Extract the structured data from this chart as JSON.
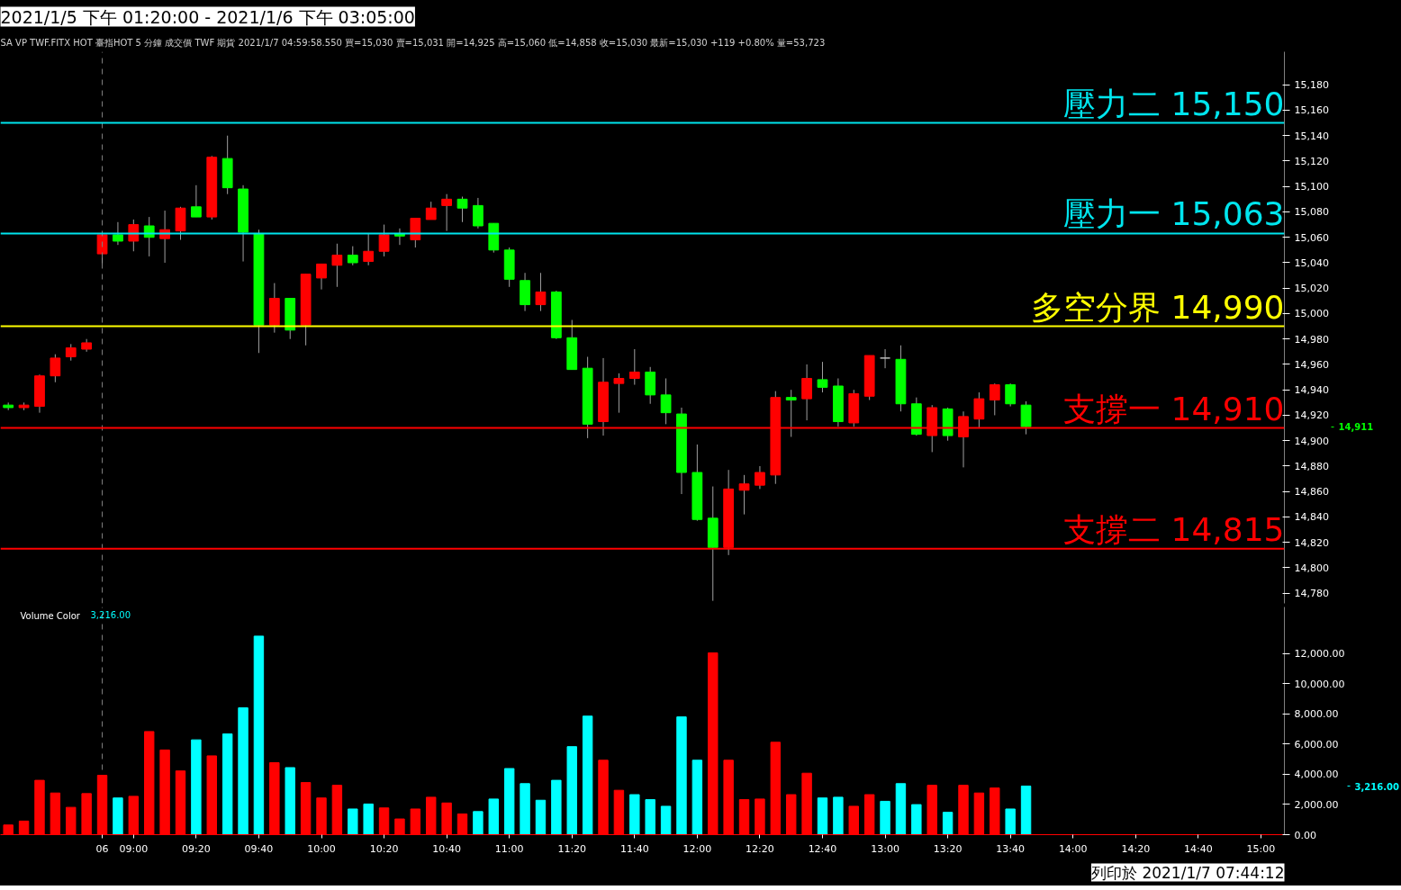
{
  "chart_data": [
    {
      "type": "candlestick",
      "title": "2021/1/5 下午 01:20:00 - 2021/1/6 下午 03:05:00",
      "subtitle": "SA VP TWF.FITX HOT 臺指HOT 5 分鐘 成交價 TWF 期貨 2021/1/7 04:59:58.550 買=15,030 賣=15,031 開=14,925 高=15,060 低=14,858 收=15,030 最新=15,030 +119 +0.80% 量=53,723",
      "categories": [
        null,
        null,
        null,
        null,
        null,
        null,
        null,
        null,
        null,
        null,
        null,
        null,
        null,
        null,
        null,
        null,
        null,
        null,
        null,
        null,
        null,
        null,
        null,
        null,
        null,
        null,
        null,
        null,
        null,
        null,
        null,
        null,
        null,
        null,
        null,
        null,
        null,
        null,
        null,
        null,
        null,
        null,
        null,
        null,
        null,
        null,
        null,
        null,
        null,
        null,
        null,
        null,
        null,
        null,
        null,
        null,
        null,
        null,
        null,
        null,
        null,
        null,
        null,
        null,
        null,
        null,
        null,
        null,
        null,
        null,
        null,
        null,
        null,
        null,
        null,
        null,
        null,
        null,
        null,
        null,
        null,
        null
      ],
      "ohlc": [
        [
          14928,
          14930,
          14924,
          14926
        ],
        [
          14926,
          14930,
          14924,
          14928
        ],
        [
          14927,
          14952,
          14922,
          14951
        ],
        [
          14951,
          14968,
          14946,
          14965
        ],
        [
          14966,
          14976,
          14963,
          14973
        ],
        [
          14972,
          14980,
          14970,
          14977
        ],
        [
          15047,
          15063,
          15038,
          15062
        ],
        [
          15062,
          15072,
          15054,
          15057
        ],
        [
          15057,
          15074,
          15049,
          15070
        ],
        [
          15069,
          15076,
          15045,
          15060
        ],
        [
          15059,
          15081,
          15040,
          15066
        ],
        [
          15065,
          15084,
          15058,
          15083
        ],
        [
          15084,
          15101,
          15076,
          15076
        ],
        [
          15076,
          15124,
          15074,
          15123
        ],
        [
          15122,
          15140,
          15094,
          15099
        ],
        [
          15098,
          15101,
          15041,
          15064
        ],
        [
          15063,
          15066,
          14969,
          14991
        ],
        [
          14991,
          15024,
          14985,
          15012
        ],
        [
          15012,
          15012,
          14980,
          14987
        ],
        [
          14991,
          15031,
          14975,
          15031
        ],
        [
          15028,
          15039,
          15019,
          15039
        ],
        [
          15038,
          15055,
          15021,
          15046
        ],
        [
          15046,
          15053,
          15038,
          15040
        ],
        [
          15041,
          15063,
          15038,
          15049
        ],
        [
          15049,
          15070,
          15045,
          15062
        ],
        [
          15063,
          15067,
          15054,
          15061
        ],
        [
          15058,
          15075,
          15052,
          15075
        ],
        [
          15074,
          15088,
          15074,
          15083
        ],
        [
          15085,
          15094,
          15065,
          15090
        ],
        [
          15090,
          15092,
          15072,
          15083
        ],
        [
          15085,
          15091,
          15067,
          15069
        ],
        [
          15071,
          15071,
          15048,
          15050
        ],
        [
          15050,
          15052,
          15021,
          15027
        ],
        [
          15026,
          15032,
          15002,
          15007
        ],
        [
          15007,
          15032,
          15002,
          15017
        ],
        [
          15017,
          15018,
          14980,
          14981
        ],
        [
          14981,
          14995,
          14956,
          14956
        ],
        [
          14957,
          14966,
          14902,
          14913
        ],
        [
          14915,
          14965,
          14904,
          14946
        ],
        [
          14945,
          14953,
          14922,
          14949
        ],
        [
          14949,
          14972,
          14944,
          14954
        ],
        [
          14954,
          14958,
          14929,
          14936
        ],
        [
          14936,
          14949,
          14913,
          14922
        ],
        [
          14921,
          14926,
          14858,
          14875
        ],
        [
          14875,
          14897,
          14837,
          14838
        ],
        [
          14839,
          14864,
          14774,
          14816
        ],
        [
          14816,
          14877,
          14810,
          14862
        ],
        [
          14861,
          14873,
          14842,
          14866
        ],
        [
          14865,
          14880,
          14862,
          14875
        ],
        [
          14873,
          14939,
          14866,
          14934
        ],
        [
          14934,
          14940,
          14903,
          14932
        ],
        [
          14933,
          14960,
          14916,
          14949
        ],
        [
          14948,
          14962,
          14938,
          14942
        ],
        [
          14943,
          14949,
          14911,
          14915
        ],
        [
          14914,
          14940,
          14911,
          14937
        ],
        [
          14935,
          14967,
          14932,
          14967
        ],
        [
          14965,
          14972,
          14957,
          14965
        ],
        [
          14964,
          14975,
          14923,
          14929
        ],
        [
          14929,
          14934,
          14904,
          14905
        ],
        [
          14904,
          14928,
          14891,
          14926
        ],
        [
          14925,
          14926,
          14900,
          14904
        ],
        [
          14903,
          14923,
          14879,
          14919
        ],
        [
          14917,
          14938,
          14910,
          14933
        ],
        [
          14932,
          14945,
          14920,
          14944
        ],
        [
          14944,
          14945,
          14927,
          14929
        ],
        [
          14928,
          14931,
          14905,
          14911
        ],
        null,
        null,
        null,
        null,
        null,
        null,
        null,
        null,
        null,
        null,
        null,
        null,
        null,
        null,
        null,
        null
      ],
      "colors": [
        "#00ff00",
        "#ff0000",
        "#ff0000",
        "#ff0000",
        "#ff0000",
        "#ff0000",
        "#ff0000",
        "#00ff00",
        "#ff0000",
        "#00ff00",
        "#ff0000",
        "#ff0000",
        "#00ff00",
        "#ff0000",
        "#00ff00",
        "#00ff00",
        "#00ff00",
        "#ff0000",
        "#00ff00",
        "#ff0000",
        "#ff0000",
        "#ff0000",
        "#00ff00",
        "#ff0000",
        "#ff0000",
        "#00ff00",
        "#ff0000",
        "#ff0000",
        "#ff0000",
        "#00ff00",
        "#00ff00",
        "#00ff00",
        "#00ff00",
        "#00ff00",
        "#ff0000",
        "#00ff00",
        "#00ff00",
        "#00ff00",
        "#ff0000",
        "#ff0000",
        "#ff0000",
        "#00ff00",
        "#00ff00",
        "#00ff00",
        "#00ff00",
        "#00ff00",
        "#ff0000",
        "#ff0000",
        "#ff0000",
        "#ff0000",
        "#00ff00",
        "#ff0000",
        "#00ff00",
        "#00ff00",
        "#ff0000",
        "#ff0000",
        "#c0c0c0",
        "#00ff00",
        "#00ff00",
        "#ff0000",
        "#00ff00",
        "#ff0000",
        "#ff0000",
        "#ff0000",
        "#00ff00",
        "#00ff00",
        null,
        null,
        null,
        null,
        null,
        null,
        null,
        null,
        null,
        null,
        null,
        null,
        null,
        null,
        null,
        null
      ],
      "ylim": [
        14772,
        15206
      ],
      "yticks": [
        {
          "value": 14780,
          "label": "14,780"
        },
        {
          "value": 14800,
          "label": "14,800"
        },
        {
          "value": 14820,
          "label": "14,820"
        },
        {
          "value": 14840,
          "label": "14,840"
        },
        {
          "value": 14860,
          "label": "14,860"
        },
        {
          "value": 14880,
          "label": "14,880"
        },
        {
          "value": 14900,
          "label": "14,900"
        },
        {
          "value": 14920,
          "label": "14,920"
        },
        {
          "value": 14940,
          "label": "14,940"
        },
        {
          "value": 14960,
          "label": "14,960"
        },
        {
          "value": 14980,
          "label": "14,980"
        },
        {
          "value": 15000,
          "label": "15,000"
        },
        {
          "value": 15020,
          "label": "15,020"
        },
        {
          "value": 15040,
          "label": "15,040"
        },
        {
          "value": 15060,
          "label": "15,060"
        },
        {
          "value": 15080,
          "label": "15,080"
        },
        {
          "value": 15100,
          "label": "15,100"
        },
        {
          "value": 15120,
          "label": "15,120"
        },
        {
          "value": 15140,
          "label": "15,140"
        },
        {
          "value": 15160,
          "label": "15,160"
        },
        {
          "value": 15180,
          "label": "15,180"
        }
      ],
      "tick_labels": "y",
      "ref_lines": [
        {
          "axis": "y",
          "value": 15150,
          "label": "壓力二 15,150",
          "color": "#00e5ee"
        },
        {
          "axis": "y",
          "value": 15063,
          "label": "壓力一 15,063",
          "color": "#00e5ee"
        },
        {
          "axis": "y",
          "value": 14990,
          "label": "多空分界 14,990",
          "color": "#ffff00"
        },
        {
          "axis": "y",
          "value": 14910,
          "label": "支撐一 14,910",
          "color": "#ff0000"
        },
        {
          "axis": "y",
          "value": 14815,
          "label": "支撐二 14,815",
          "color": "#ff0000"
        }
      ],
      "annotations": [
        "14,911"
      ]
    },
    {
      "type": "bar",
      "title": "Volume Color",
      "categories": [
        null,
        null,
        null,
        null,
        null,
        null,
        "06",
        null,
        "09:00",
        null,
        null,
        null,
        "09:20",
        null,
        null,
        null,
        "09:40",
        null,
        null,
        null,
        "10:00",
        null,
        null,
        null,
        "10:20",
        null,
        null,
        null,
        "10:40",
        null,
        null,
        null,
        "11:00",
        null,
        null,
        null,
        "11:20",
        null,
        null,
        null,
        "11:40",
        null,
        null,
        null,
        "12:00",
        null,
        null,
        null,
        "12:20",
        null,
        null,
        null,
        "12:40",
        null,
        null,
        null,
        "13:00",
        null,
        null,
        null,
        "13:20",
        null,
        null,
        null,
        "13:40",
        null,
        null,
        null,
        "14:00",
        null,
        null,
        null,
        "14:20",
        null,
        null,
        null,
        "14:40",
        null,
        null,
        null,
        "15:00",
        null
      ],
      "values": [
        640,
        900,
        3600,
        2760,
        1810,
        2720,
        3930,
        2430,
        2540,
        6830,
        5610,
        4220,
        6280,
        5220,
        6670,
        8400,
        13150,
        4770,
        4440,
        3450,
        2430,
        3270,
        1700,
        2030,
        1770,
        1040,
        1700,
        2480,
        2100,
        1370,
        1530,
        2360,
        4380,
        3380,
        2280,
        3600,
        5830,
        7850,
        4930,
        2940,
        2650,
        2320,
        1880,
        7800,
        4930,
        12040,
        4930,
        2320,
        2360,
        6120,
        2650,
        4070,
        2430,
        2480,
        1880,
        2650,
        2210,
        3380,
        1990,
        3270,
        1480,
        3270,
        2760,
        3090,
        1700,
        3216,
        null,
        null,
        null,
        null,
        null,
        null,
        null,
        null,
        null,
        null,
        null,
        null,
        null,
        null,
        null,
        null
      ],
      "colors": [
        "#ff0000",
        "#ff0000",
        "#ff0000",
        "#ff0000",
        "#ff0000",
        "#ff0000",
        "#ff0000",
        "#00ffff",
        "#ff0000",
        "#ff0000",
        "#ff0000",
        "#ff0000",
        "#00ffff",
        "#ff0000",
        "#00ffff",
        "#00ffff",
        "#00ffff",
        "#ff0000",
        "#00ffff",
        "#ff0000",
        "#ff0000",
        "#ff0000",
        "#00ffff",
        "#00ffff",
        "#ff0000",
        "#ff0000",
        "#ff0000",
        "#ff0000",
        "#ff0000",
        "#ff0000",
        "#00ffff",
        "#00ffff",
        "#00ffff",
        "#00ffff",
        "#00ffff",
        "#00ffff",
        "#00ffff",
        "#00ffff",
        "#ff0000",
        "#ff0000",
        "#00ffff",
        "#00ffff",
        "#00ffff",
        "#00ffff",
        "#00ffff",
        "#ff0000",
        "#ff0000",
        "#ff0000",
        "#ff0000",
        "#ff0000",
        "#ff0000",
        "#ff0000",
        "#00ffff",
        "#00ffff",
        "#ff0000",
        "#ff0000",
        "#00ffff",
        "#00ffff",
        "#00ffff",
        "#ff0000",
        "#00ffff",
        "#ff0000",
        "#ff0000",
        "#ff0000",
        "#00ffff",
        "#00ffff",
        null,
        null,
        null,
        null,
        null,
        null,
        null,
        null,
        null,
        null,
        null,
        null,
        null,
        null,
        null,
        null
      ],
      "ylim": [
        0,
        15080
      ],
      "ref_lines": [
        {
          "axis": "x",
          "value": "06",
          "color": "#808080",
          "line_style": "dashed"
        }
      ],
      "yticks": [
        {
          "value": 0,
          "label": "0.00"
        },
        {
          "value": 2000,
          "label": "2,000.00"
        },
        {
          "value": 4000,
          "label": "4,000.00"
        },
        {
          "value": 6000,
          "label": "6,000.00"
        },
        {
          "value": 8000,
          "label": "8,000.00"
        },
        {
          "value": 10000,
          "label": "10,000.00"
        },
        {
          "value": 12000,
          "label": "12,000.00"
        }
      ],
      "annotations": [
        "3,216.00",
        "3,216.00",
        "列印於 2021/1/7 07:44:12"
      ]
    }
  ]
}
